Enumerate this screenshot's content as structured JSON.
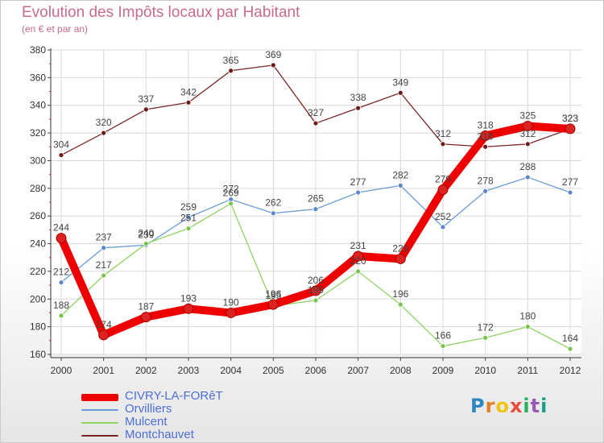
{
  "header": {
    "title": "Evolution des Impôts locaux par Habitant",
    "subtitle": "(en € et par an)"
  },
  "logo": {
    "text": "Proxiti",
    "letter_colors": [
      "#2e86c1",
      "#e67e22",
      "#f1c40f",
      "#e74c3c",
      "#27ae60",
      "#9b59b6",
      "#16a085"
    ]
  },
  "chart_data": {
    "type": "line",
    "title": "Evolution des Impôts locaux par Habitant",
    "subtitle": "(en € et par an)",
    "xlabel": "",
    "ylabel": "",
    "x": [
      "2000",
      "2001",
      "2002",
      "2003",
      "2004",
      "2005",
      "2006",
      "2007",
      "2008",
      "2009",
      "2010",
      "2011",
      "2012"
    ],
    "ylim": [
      160,
      380
    ],
    "yticks": [
      160,
      180,
      200,
      220,
      240,
      260,
      280,
      300,
      320,
      340,
      360,
      380
    ],
    "grid": true,
    "legend_position": "bottom-left",
    "series": [
      {
        "name": "CIVRY-LA-FORêT",
        "color": "#ee0000",
        "marker": "#dd2222",
        "highlight": true,
        "values": [
          244,
          174,
          187,
          193,
          190,
          196,
          206,
          231,
          229,
          279,
          318,
          325,
          323
        ]
      },
      {
        "name": "Orvilliers",
        "color": "#6a9bd8",
        "marker": "#5b88cc",
        "highlight": false,
        "values": [
          212,
          237,
          239,
          259,
          272,
          262,
          265,
          277,
          282,
          252,
          278,
          288,
          277
        ]
      },
      {
        "name": "Mulcent",
        "color": "#8fd464",
        "marker": "#79c44c",
        "highlight": false,
        "values": [
          188,
          217,
          240,
          251,
          269,
          195,
          199,
          220,
          196,
          166,
          172,
          180,
          164
        ]
      },
      {
        "name": "Montchauvet",
        "color": "#7a2424",
        "marker": "#6b1a1a",
        "highlight": false,
        "values": [
          304,
          320,
          337,
          342,
          365,
          369,
          327,
          338,
          349,
          312,
          310,
          312,
          323
        ]
      }
    ]
  }
}
